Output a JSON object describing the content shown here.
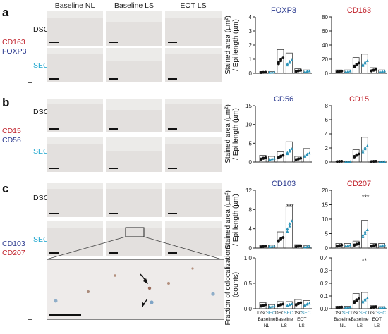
{
  "column_headers": [
    "Baseline NL",
    "Baseline LS",
    "EOT LS"
  ],
  "panels": [
    {
      "letter": "a",
      "markers": [
        "CD163",
        "FOXP3"
      ],
      "rows": [
        "DSC",
        "SEC"
      ],
      "charts": [
        {
          "title": "FOXP3",
          "ymax": 4,
          "yticks": [
            "0",
            "1",
            "2",
            "3",
            "4"
          ]
        },
        {
          "title": "CD163",
          "ymax": 80,
          "yticks": [
            "0",
            "20",
            "40",
            "60",
            "80"
          ]
        }
      ]
    },
    {
      "letter": "b",
      "markers": [
        "CD15",
        "CD56"
      ],
      "rows": [
        "DSC",
        "SEC"
      ],
      "charts": [
        {
          "title": "CD56",
          "ymax": 15,
          "yticks": [
            "0",
            "5",
            "10",
            "15"
          ]
        },
        {
          "title": "CD15",
          "ymax": 8,
          "yticks": [
            "0",
            "2",
            "4",
            "6",
            "8"
          ]
        }
      ]
    },
    {
      "letter": "c",
      "markers": [
        "CD103",
        "CD207"
      ],
      "rows": [
        "DSC",
        "SEC"
      ],
      "charts": [
        {
          "title": "CD103",
          "ymax": 12,
          "yticks": [
            "0",
            "4",
            "8",
            "12"
          ]
        },
        {
          "title": "CD207",
          "ymax": 20,
          "yticks": [
            "0",
            "5",
            "10",
            "15",
            "20"
          ]
        }
      ],
      "coloc_charts": [
        {
          "ymax": 1.0,
          "yticks": [
            "0.0",
            "0.5",
            "1.0"
          ]
        },
        {
          "ymax": 0.4,
          "yticks": [
            "0.0",
            "0.1",
            "0.2",
            "0.3",
            "0.4"
          ]
        }
      ]
    }
  ],
  "ylabel_line1": "Stained area (µm²)",
  "ylabel_line2": "/ Epi length (µm)",
  "coloc_ylabel_line1": "Fraction of colocalizations",
  "coloc_ylabel_line2": "(counts)",
  "x_group_labels": [
    {
      "top": "DSC SEC",
      "bottom": "Baseline NL"
    },
    {
      "top": "DSC SEC",
      "bottom": "Baseline LS"
    },
    {
      "top": "DSC SEC",
      "bottom": "EOT LS"
    }
  ],
  "x_top_words": [
    "DSC",
    "SEC"
  ],
  "x_group_names": [
    [
      "Baseline",
      "NL"
    ],
    [
      "Baseline",
      "LS"
    ],
    [
      "EOT",
      "LS"
    ]
  ],
  "significance": "***",
  "sig_double": "**",
  "sig_single": "*",
  "colors": {
    "dsc": "#111111",
    "sec": "#2a93b8",
    "cd163": "#c0202a",
    "foxp3": "#2b3a8f",
    "sec_label": "#20a7cf"
  }
}
